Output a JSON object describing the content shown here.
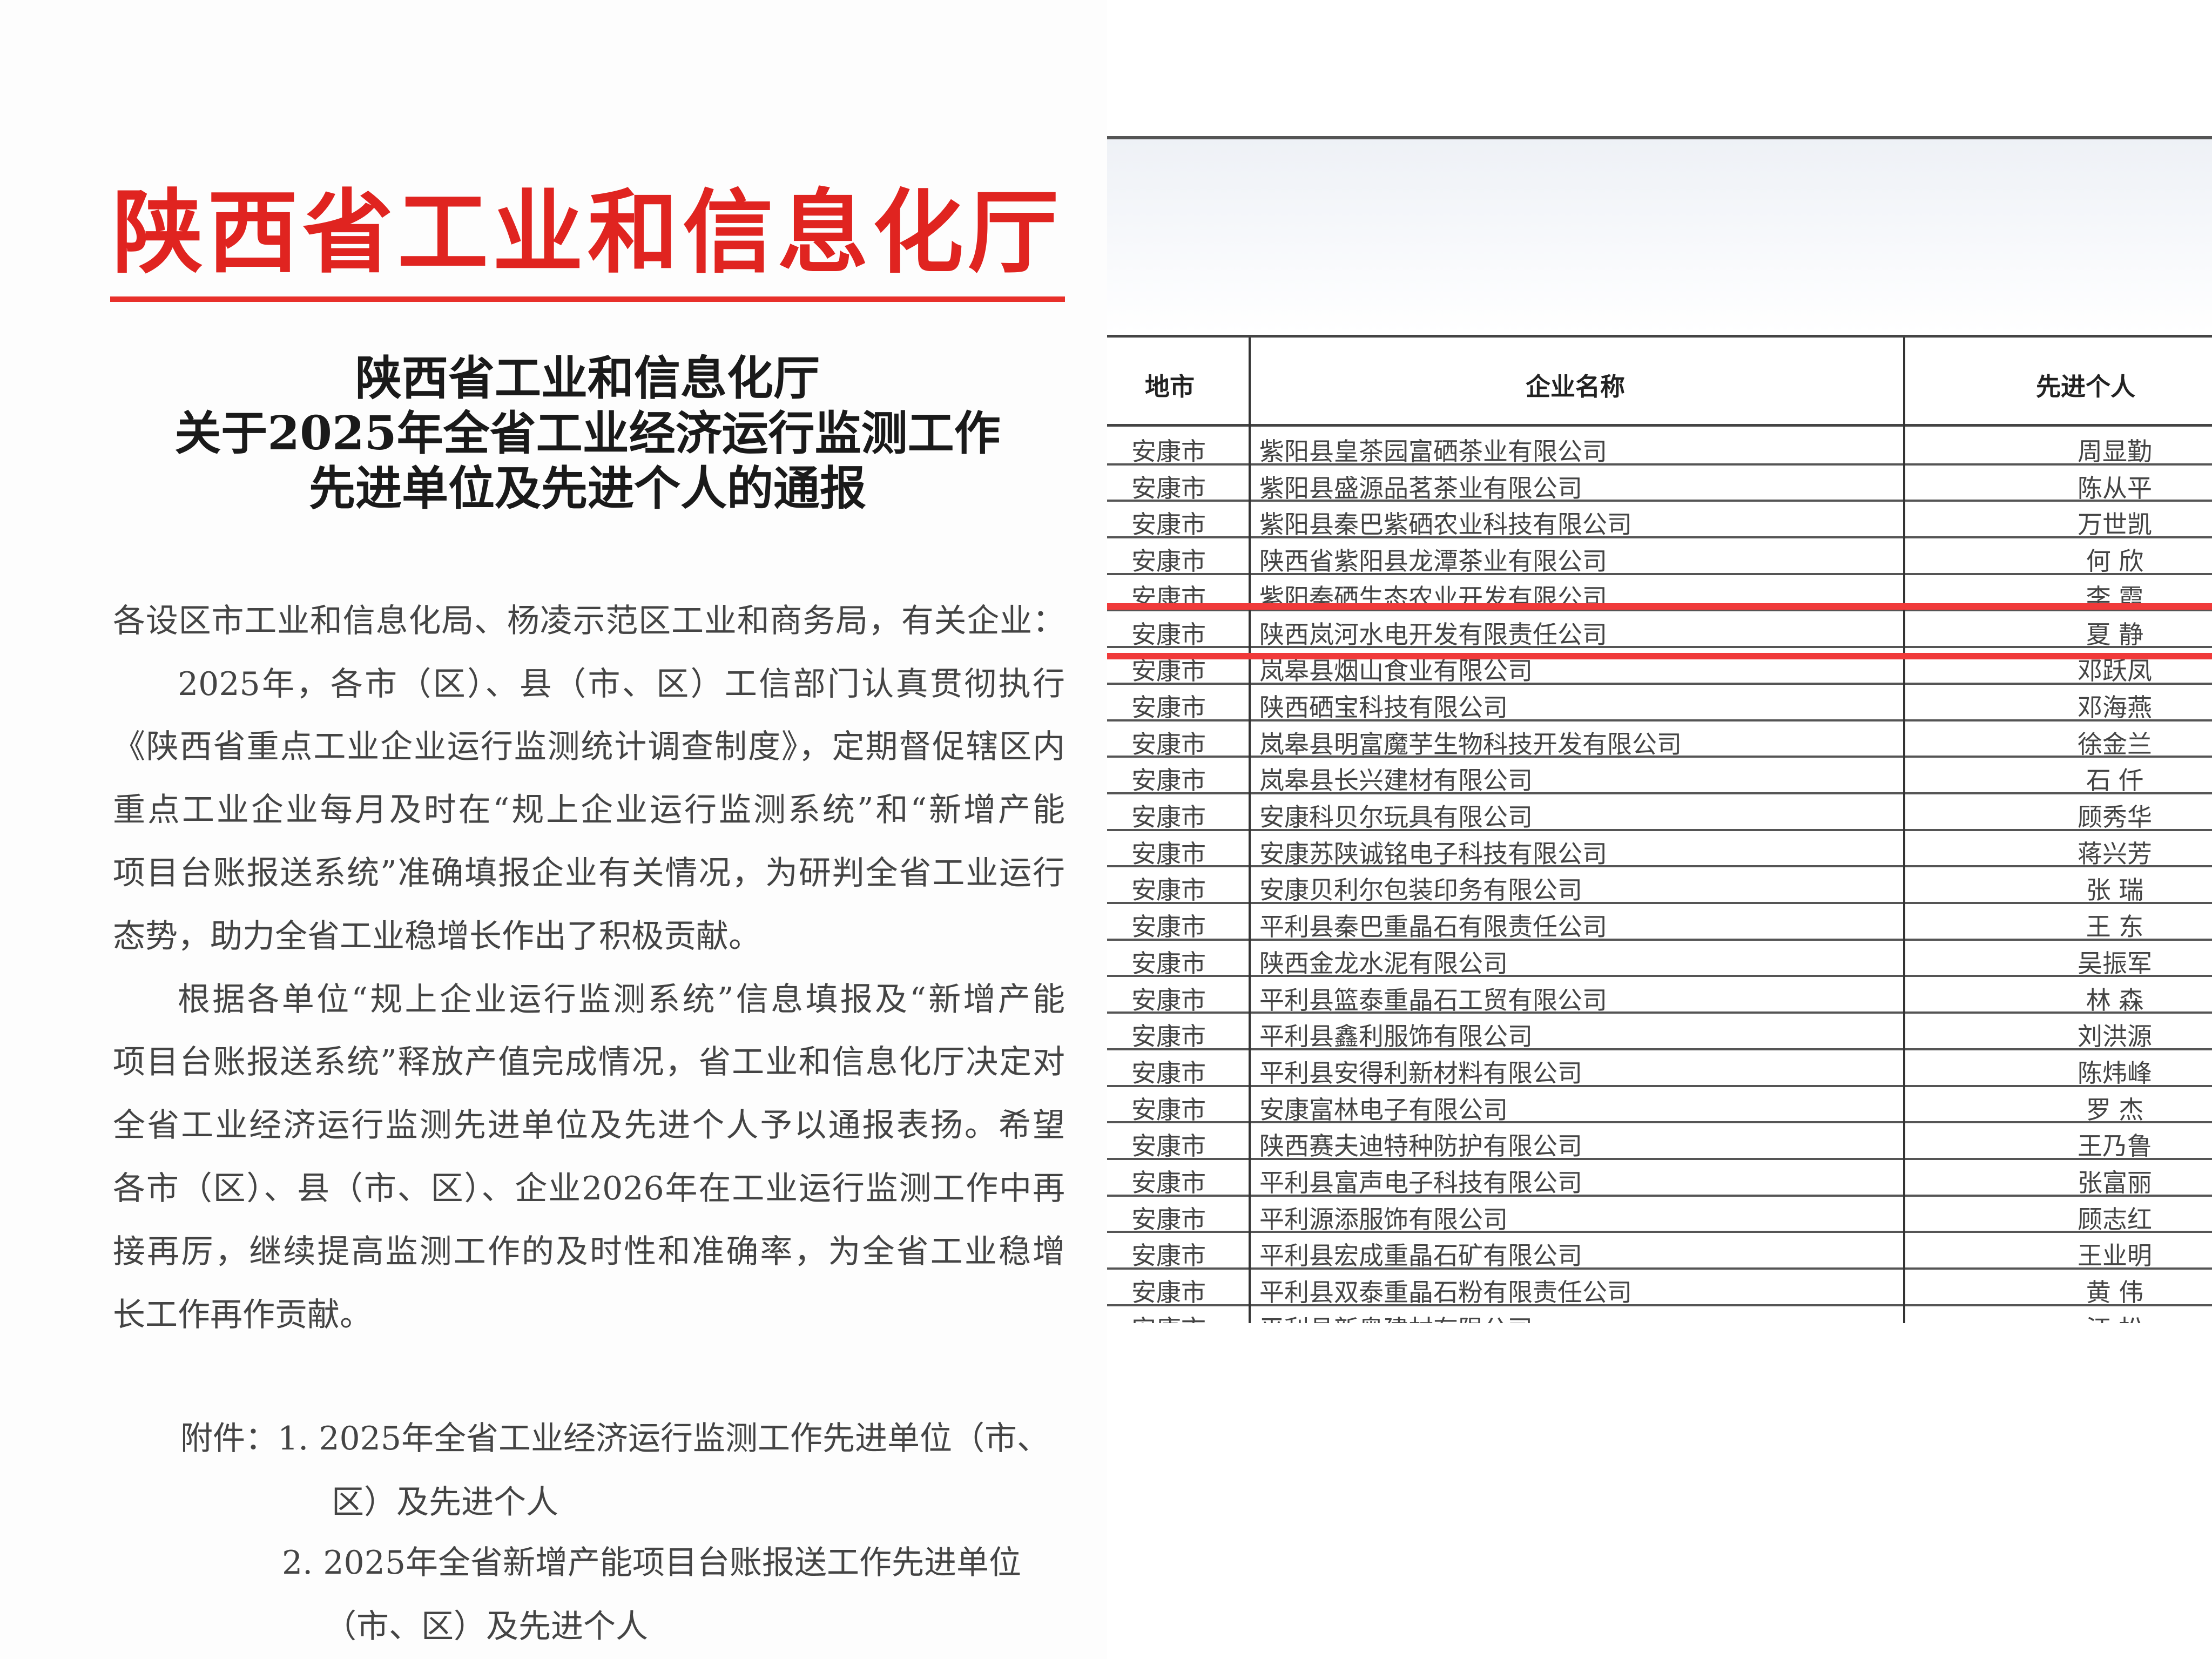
{
  "left_page": {
    "letterhead": "陕西省工业和信息化厅",
    "subtitle_lines": [
      "陕西省工业和信息化厅",
      "关于2025年全省工业经济运行监测工作",
      "先进单位及先进个人的通报"
    ],
    "body_lines": [
      "各设区市工业和信息化局、杨凌示范区工业和商务局，有关企业：",
      "2025年，各市（区）、县（市、区）工信部门认真贯彻执行",
      "《陕西省重点工业企业运行监测统计调查制度》，定期督促辖区内",
      "重点工业企业每月及时在“规上企业运行监测系统”和“新增产能",
      "项目台账报送系统”准确填报企业有关情况，为研判全省工业运行",
      "态势，助力全省工业稳增长作出了积极贡献。",
      "根据各单位“规上企业运行监测系统”信息填报及“新增产能",
      "项目台账报送系统”释放产值完成情况，省工业和信息化厅决定对",
      "全省工业经济运行监测先进单位及先进个人予以通报表扬。希望",
      "各市（区）、县（市、区）、企业2026年在工业运行监测工作中再",
      "接再厉，继续提高监测工作的及时性和准确率，为全省工业稳增",
      "长工作再作贡献。"
    ],
    "attachments": {
      "label": "附件：",
      "item1_line1": "1. 2025年全省工业经济运行监测工作先进单位（市、",
      "item1_line2": "区）及先进个人",
      "item2_line1": "2. 2025年全省新增产能项目台账报送工作先进单位",
      "item2_line2": "（市、区）及先进个人"
    }
  },
  "table": {
    "headers": [
      "地市",
      "企业名称",
      "先进个人"
    ],
    "rows": [
      [
        "安康市",
        "紫阳县皇茶园富硒茶业有限公司",
        "周显勤"
      ],
      [
        "安康市",
        "紫阳县盛源品茗茶业有限公司",
        "陈从平"
      ],
      [
        "安康市",
        "紫阳县秦巴紫硒农业科技有限公司",
        "万世凯"
      ],
      [
        "安康市",
        "陕西省紫阳县龙潭茶业有限公司",
        "何 欣"
      ],
      [
        "安康市",
        "紫阳秦硒生态农业开发有限公司",
        "李 霞"
      ],
      [
        "安康市",
        "陕西岚河水电开发有限责任公司",
        "夏 静"
      ],
      [
        "安康市",
        "岚皋县烟山食业有限公司",
        "邓跃凤"
      ],
      [
        "安康市",
        "陕西硒宝科技有限公司",
        "邓海燕"
      ],
      [
        "安康市",
        "岚皋县明富魔芋生物科技开发有限公司",
        "徐金兰"
      ],
      [
        "安康市",
        "岚皋县长兴建材有限公司",
        "石 仟"
      ],
      [
        "安康市",
        "安康科贝尔玩具有限公司",
        "顾秀华"
      ],
      [
        "安康市",
        "安康苏陕诚铭电子科技有限公司",
        "蒋兴芳"
      ],
      [
        "安康市",
        "安康贝利尔包装印务有限公司",
        "张 瑞"
      ],
      [
        "安康市",
        "平利县秦巴重晶石有限责任公司",
        "王 东"
      ],
      [
        "安康市",
        "陕西金龙水泥有限公司",
        "吴振军"
      ],
      [
        "安康市",
        "平利县篮泰重晶石工贸有限公司",
        "林 森"
      ],
      [
        "安康市",
        "平利县鑫利服饰有限公司",
        "刘洪源"
      ],
      [
        "安康市",
        "平利县安得利新材料有限公司",
        "陈炜峰"
      ],
      [
        "安康市",
        "安康富林电子有限公司",
        "罗 杰"
      ],
      [
        "安康市",
        "陕西赛夫迪特种防护有限公司",
        "王乃鲁"
      ],
      [
        "安康市",
        "平利县富声电子科技有限公司",
        "张富丽"
      ],
      [
        "安康市",
        "平利源添服饰有限公司",
        "顾志红"
      ],
      [
        "安康市",
        "平利县宏成重晶石矿有限公司",
        "王业明"
      ],
      [
        "安康市",
        "平利县双泰重晶石粉有限责任公司",
        "黄 伟"
      ],
      [
        "安康市",
        "平利县新奥建材有限公司",
        "汪 松"
      ]
    ],
    "highlight_color": "#f03a3a"
  },
  "colors": {
    "letterhead": "#e02420",
    "highlight": "#f03a3a"
  }
}
